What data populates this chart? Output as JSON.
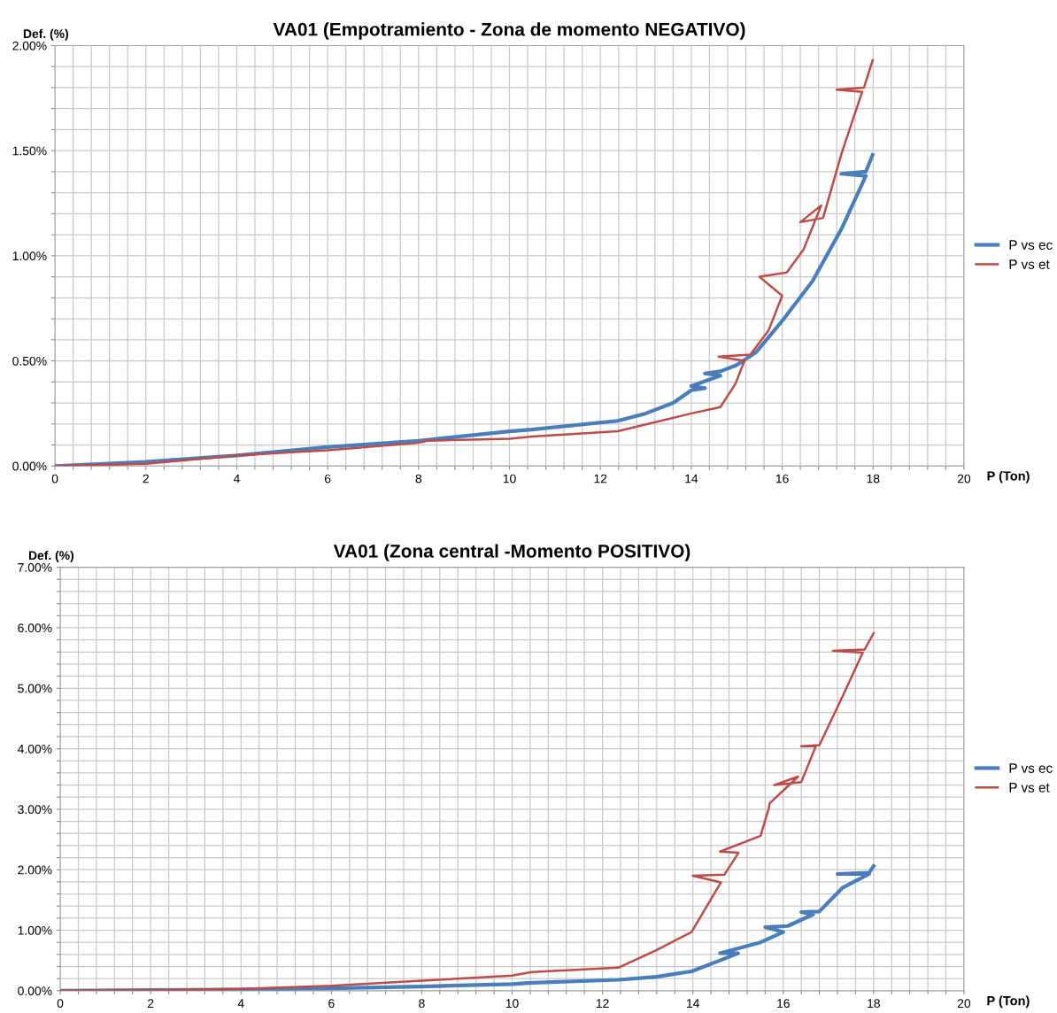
{
  "chart_data": [
    {
      "type": "line",
      "title": "VA01 (Empotramiento - Zona de momento NEGATIVO)",
      "xlabel": "P (Ton)",
      "ylabel": "Def. (%)",
      "xlim": [
        0,
        20
      ],
      "ylim": [
        0,
        2
      ],
      "xticks": [
        0,
        {
          "value": 0.4,
          "label": null
        },
        {
          "value": 0.8,
          "label": null
        },
        {
          "value": 1.2,
          "label": null
        },
        {
          "value": 1.6,
          "label": null
        },
        2,
        {
          "value": 2.4,
          "label": null
        },
        {
          "value": 2.8,
          "label": null
        },
        {
          "value": 3.2,
          "label": null
        },
        {
          "value": 3.6,
          "label": null
        },
        4,
        {
          "value": 4.4,
          "label": null
        },
        {
          "value": 4.8,
          "label": null
        },
        {
          "value": 5.2,
          "label": null
        },
        {
          "value": 5.6,
          "label": null
        },
        6,
        {
          "value": 6.4,
          "label": null
        },
        {
          "value": 6.8,
          "label": null
        },
        {
          "value": 7.2,
          "label": null
        },
        {
          "value": 7.6,
          "label": null
        },
        8,
        {
          "value": 8.4,
          "label": null
        },
        {
          "value": 8.8,
          "label": null
        },
        {
          "value": 9.2,
          "label": null
        },
        {
          "value": 9.6,
          "label": null
        },
        10,
        {
          "value": 10.4,
          "label": null
        },
        {
          "value": 10.8,
          "label": null
        },
        {
          "value": 11.2,
          "label": null
        },
        {
          "value": 11.6,
          "label": null
        },
        12,
        {
          "value": 12.4,
          "label": null
        },
        {
          "value": 12.8,
          "label": null
        },
        {
          "value": 13.2,
          "label": null
        },
        {
          "value": 13.6,
          "label": null
        },
        14,
        {
          "value": 14.4,
          "label": null
        },
        {
          "value": 14.8,
          "label": null
        },
        {
          "value": 15.2,
          "label": null
        },
        {
          "value": 15.6,
          "label": null
        },
        16,
        {
          "value": 16.4,
          "label": null
        },
        {
          "value": 16.8,
          "label": null
        },
        {
          "value": 17.2,
          "label": null
        },
        {
          "value": 17.6,
          "label": null
        },
        18,
        {
          "value": 18.4,
          "label": null
        },
        {
          "value": 18.8,
          "label": null
        },
        {
          "value": 19.2,
          "label": null
        },
        {
          "value": 19.6,
          "label": null
        },
        20
      ],
      "yticks": [
        {
          "value": 0,
          "label": "0.00%"
        },
        {
          "value": 0.1,
          "label": null
        },
        {
          "value": 0.2,
          "label": null
        },
        {
          "value": 0.3,
          "label": null
        },
        {
          "value": 0.4,
          "label": null
        },
        {
          "value": 0.5,
          "label": "0.50%"
        },
        {
          "value": 0.6,
          "label": null
        },
        {
          "value": 0.7,
          "label": null
        },
        {
          "value": 0.8,
          "label": null
        },
        {
          "value": 0.9,
          "label": null
        },
        {
          "value": 1,
          "label": "1.00%"
        },
        {
          "value": 1.1,
          "label": null
        },
        {
          "value": 1.2,
          "label": null
        },
        {
          "value": 1.3,
          "label": null
        },
        {
          "value": 1.4,
          "label": null
        },
        {
          "value": 1.5,
          "label": "1.50%"
        },
        {
          "value": 1.6,
          "label": null
        },
        {
          "value": 1.7,
          "label": null
        },
        {
          "value": 1.8,
          "label": null
        },
        {
          "value": 1.9,
          "label": null
        },
        {
          "value": 2,
          "label": "2.00%"
        }
      ],
      "grid": true,
      "legend": "right",
      "marker": "none",
      "series": [
        {
          "name": "P vs ec",
          "color": "#4a7ebb",
          "x": [
            0,
            2,
            4,
            6,
            8,
            10,
            10.49,
            12.38,
            13,
            13.6,
            14.0,
            14.3,
            14.0,
            14.64,
            14.3,
            14.64,
            15.0,
            15.42,
            16.0,
            16.67,
            17.31,
            17.84,
            17.3,
            17.84,
            17.99
          ],
          "values": [
            0,
            0.02,
            0.05,
            0.09,
            0.12,
            0.165,
            0.173,
            0.215,
            0.25,
            0.3,
            0.36,
            0.37,
            0.38,
            0.43,
            0.44,
            0.45,
            0.48,
            0.54,
            0.69,
            0.88,
            1.13,
            1.38,
            1.39,
            1.4,
            1.48
          ]
        },
        {
          "name": "P vs et",
          "color": "#be4b48",
          "x": [
            0,
            2,
            4,
            6,
            8,
            8.2,
            10,
            10.49,
            12.38,
            14.0,
            14.64,
            14.97,
            15.17,
            14.6,
            15.3,
            15.7,
            16.0,
            15.5,
            16.1,
            16.47,
            16.86,
            16.4,
            16.9,
            17.31,
            17.76,
            17.2,
            17.8,
            17.99
          ],
          "values": [
            0,
            0.01,
            0.05,
            0.075,
            0.11,
            0.12,
            0.13,
            0.14,
            0.165,
            0.25,
            0.28,
            0.39,
            0.5,
            0.52,
            0.53,
            0.645,
            0.81,
            0.9,
            0.92,
            1.03,
            1.24,
            1.16,
            1.18,
            1.49,
            1.78,
            1.79,
            1.8,
            1.93
          ]
        }
      ]
    },
    {
      "type": "line",
      "title": "VA01 (Zona central -Momento POSITIVO)",
      "xlabel": "P (Ton)",
      "ylabel": "Def. (%)",
      "xlim": [
        0,
        20
      ],
      "ylim": [
        0,
        7
      ],
      "xticks": [
        0,
        {
          "value": 0.4,
          "label": null
        },
        {
          "value": 0.8,
          "label": null
        },
        {
          "value": 1.2,
          "label": null
        },
        {
          "value": 1.6,
          "label": null
        },
        2,
        {
          "value": 2.4,
          "label": null
        },
        {
          "value": 2.8,
          "label": null
        },
        {
          "value": 3.2,
          "label": null
        },
        {
          "value": 3.6,
          "label": null
        },
        4,
        {
          "value": 4.4,
          "label": null
        },
        {
          "value": 4.8,
          "label": null
        },
        {
          "value": 5.2,
          "label": null
        },
        {
          "value": 5.6,
          "label": null
        },
        6,
        {
          "value": 6.4,
          "label": null
        },
        {
          "value": 6.8,
          "label": null
        },
        {
          "value": 7.2,
          "label": null
        },
        {
          "value": 7.6,
          "label": null
        },
        8,
        {
          "value": 8.4,
          "label": null
        },
        {
          "value": 8.8,
          "label": null
        },
        {
          "value": 9.2,
          "label": null
        },
        {
          "value": 9.6,
          "label": null
        },
        10,
        {
          "value": 10.4,
          "label": null
        },
        {
          "value": 10.8,
          "label": null
        },
        {
          "value": 11.2,
          "label": null
        },
        {
          "value": 11.6,
          "label": null
        },
        12,
        {
          "value": 12.4,
          "label": null
        },
        {
          "value": 12.8,
          "label": null
        },
        {
          "value": 13.2,
          "label": null
        },
        {
          "value": 13.6,
          "label": null
        },
        14,
        {
          "value": 14.4,
          "label": null
        },
        {
          "value": 14.8,
          "label": null
        },
        {
          "value": 15.2,
          "label": null
        },
        {
          "value": 15.6,
          "label": null
        },
        16,
        {
          "value": 16.4,
          "label": null
        },
        {
          "value": 16.8,
          "label": null
        },
        {
          "value": 17.2,
          "label": null
        },
        {
          "value": 17.6,
          "label": null
        },
        18,
        {
          "value": 18.4,
          "label": null
        },
        {
          "value": 18.8,
          "label": null
        },
        {
          "value": 19.2,
          "label": null
        },
        {
          "value": 19.6,
          "label": null
        },
        20
      ],
      "yticks": [
        {
          "value": 0,
          "label": "0.00%"
        },
        {
          "value": 0.2,
          "label": null
        },
        {
          "value": 0.4,
          "label": null
        },
        {
          "value": 0.6,
          "label": null
        },
        {
          "value": 0.8,
          "label": null
        },
        {
          "value": 1,
          "label": "1.00%"
        },
        {
          "value": 1.2,
          "label": null
        },
        {
          "value": 1.4,
          "label": null
        },
        {
          "value": 1.6,
          "label": null
        },
        {
          "value": 1.8,
          "label": null
        },
        {
          "value": 2,
          "label": "2.00%"
        },
        {
          "value": 2.2,
          "label": null
        },
        {
          "value": 2.4,
          "label": null
        },
        {
          "value": 2.6,
          "label": null
        },
        {
          "value": 2.8,
          "label": null
        },
        {
          "value": 3,
          "label": "3.00%"
        },
        {
          "value": 3.2,
          "label": null
        },
        {
          "value": 3.4,
          "label": null
        },
        {
          "value": 3.6,
          "label": null
        },
        {
          "value": 3.8,
          "label": null
        },
        {
          "value": 4,
          "label": "4.00%"
        },
        {
          "value": 4.2,
          "label": null
        },
        {
          "value": 4.4,
          "label": null
        },
        {
          "value": 4.6,
          "label": null
        },
        {
          "value": 4.8,
          "label": null
        },
        {
          "value": 5,
          "label": "5.00%"
        },
        {
          "value": 5.2,
          "label": null
        },
        {
          "value": 5.4,
          "label": null
        },
        {
          "value": 5.6,
          "label": null
        },
        {
          "value": 5.8,
          "label": null
        },
        {
          "value": 6,
          "label": "6.00%"
        },
        {
          "value": 6.2,
          "label": null
        },
        {
          "value": 6.4,
          "label": null
        },
        {
          "value": 6.6,
          "label": null
        },
        {
          "value": 6.8,
          "label": null
        },
        {
          "value": 7,
          "label": "7.00%"
        }
      ],
      "grid": true,
      "legend": "right",
      "marker": "none",
      "series": [
        {
          "name": "P vs ec",
          "color": "#4a7ebb",
          "x": [
            0,
            2,
            4,
            6,
            8,
            10,
            10.44,
            12.35,
            13.2,
            13.97,
            14.6,
            15.0,
            14.6,
            15.5,
            16.0,
            15.6,
            16.1,
            16.66,
            16.4,
            16.8,
            17.31,
            17.9,
            17.2,
            17.9,
            18.0
          ],
          "values": [
            0,
            0.01,
            0.02,
            0.04,
            0.07,
            0.11,
            0.13,
            0.18,
            0.23,
            0.32,
            0.5,
            0.62,
            0.62,
            0.8,
            0.97,
            1.05,
            1.07,
            1.26,
            1.3,
            1.31,
            1.7,
            1.93,
            1.93,
            1.95,
            2.06
          ]
        },
        {
          "name": "P vs et",
          "color": "#be4b48",
          "x": [
            0,
            2,
            4,
            6,
            8,
            10,
            10.44,
            12.35,
            13.19,
            13.97,
            14.62,
            14.0,
            14.7,
            15.01,
            14.6,
            15.5,
            15.68,
            15.7,
            16.33,
            15.8,
            16.4,
            16.72,
            16.4,
            16.8,
            17.31,
            17.76,
            17.1,
            17.8,
            18.0
          ],
          "values": [
            0,
            0.01,
            0.03,
            0.08,
            0.165,
            0.25,
            0.31,
            0.38,
            0.67,
            0.97,
            1.79,
            1.9,
            1.92,
            2.28,
            2.3,
            2.56,
            3.02,
            3.1,
            3.54,
            3.4,
            3.45,
            4.04,
            4.04,
            4.06,
            4.86,
            5.59,
            5.62,
            5.64,
            5.91
          ]
        }
      ]
    }
  ]
}
